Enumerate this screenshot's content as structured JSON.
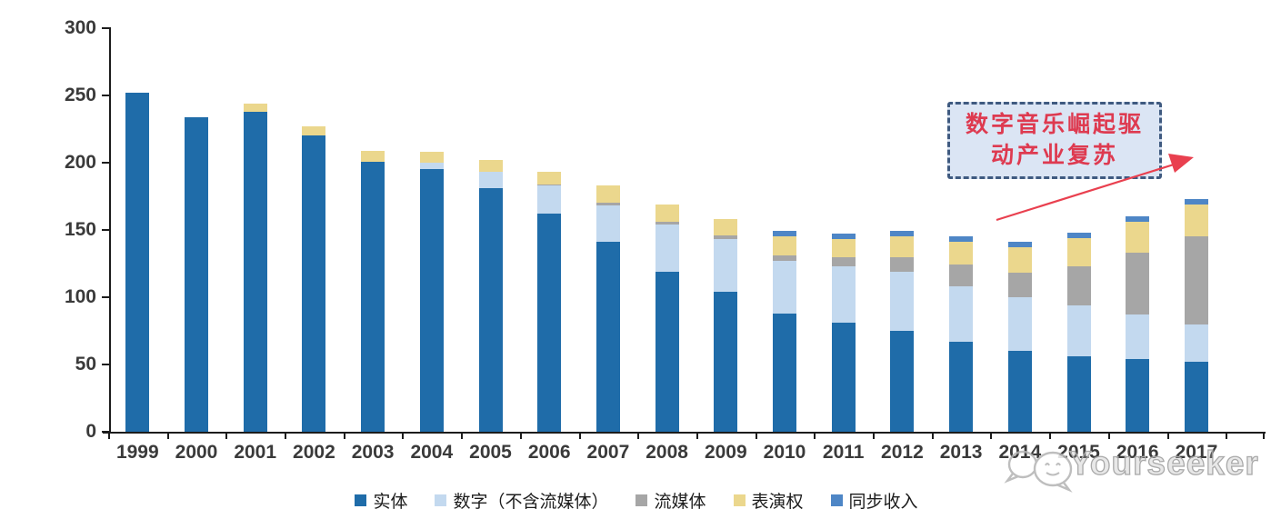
{
  "chart_data": {
    "type": "bar",
    "subtype": "stacked",
    "title": "",
    "categories": [
      "1999",
      "2000",
      "2001",
      "2002",
      "2003",
      "2004",
      "2005",
      "2006",
      "2007",
      "2008",
      "2009",
      "2010",
      "2011",
      "2012",
      "2013",
      "2014",
      "2015",
      "2016",
      "2017"
    ],
    "series": [
      {
        "name": "实体",
        "color": "#1F6CA9",
        "values": [
          252,
          234,
          238,
          220,
          201,
          195,
          181,
          162,
          141,
          119,
          104,
          88,
          81,
          75,
          67,
          60,
          56,
          54,
          52
        ]
      },
      {
        "name": "数字（不含流媒体）",
        "color": "#C3D9EF",
        "values": [
          0,
          0,
          0,
          0,
          0,
          5,
          12,
          21,
          27,
          35,
          39,
          39,
          42,
          44,
          41,
          40,
          38,
          33,
          28
        ]
      },
      {
        "name": "流媒体",
        "color": "#A6A6A6",
        "values": [
          0,
          0,
          0,
          0,
          0,
          0,
          0,
          1,
          2,
          2,
          3,
          4,
          7,
          11,
          16,
          18,
          29,
          46,
          65
        ]
      },
      {
        "name": "表演权",
        "color": "#EBD78D",
        "values": [
          0,
          0,
          6,
          7,
          8,
          8,
          9,
          9,
          13,
          13,
          12,
          14,
          13,
          15,
          17,
          19,
          21,
          23,
          24
        ]
      },
      {
        "name": "同步收入",
        "color": "#4E86C6",
        "values": [
          0,
          0,
          0,
          0,
          0,
          0,
          0,
          0,
          0,
          0,
          0,
          4,
          4,
          4,
          4,
          4,
          4,
          4,
          4
        ]
      }
    ],
    "y_axis": {
      "min": 0,
      "max": 300,
      "tick_step": 50,
      "ticks": [
        "0",
        "50",
        "100",
        "150",
        "200",
        "250",
        "300"
      ]
    },
    "x_axis": {
      "label": ""
    },
    "grid": false,
    "legend_position": "bottom"
  },
  "annotation": {
    "line1": "数字音乐崛起驱",
    "line2": "动产业复苏",
    "text_color": "#DE3A50",
    "box_fill": "#DBE5F4",
    "box_border": "#3F5A80",
    "arrow_color": "#E9404F"
  },
  "watermark": {
    "brand": "Yourseeker",
    "logo": "chat-bubbles-logo"
  }
}
